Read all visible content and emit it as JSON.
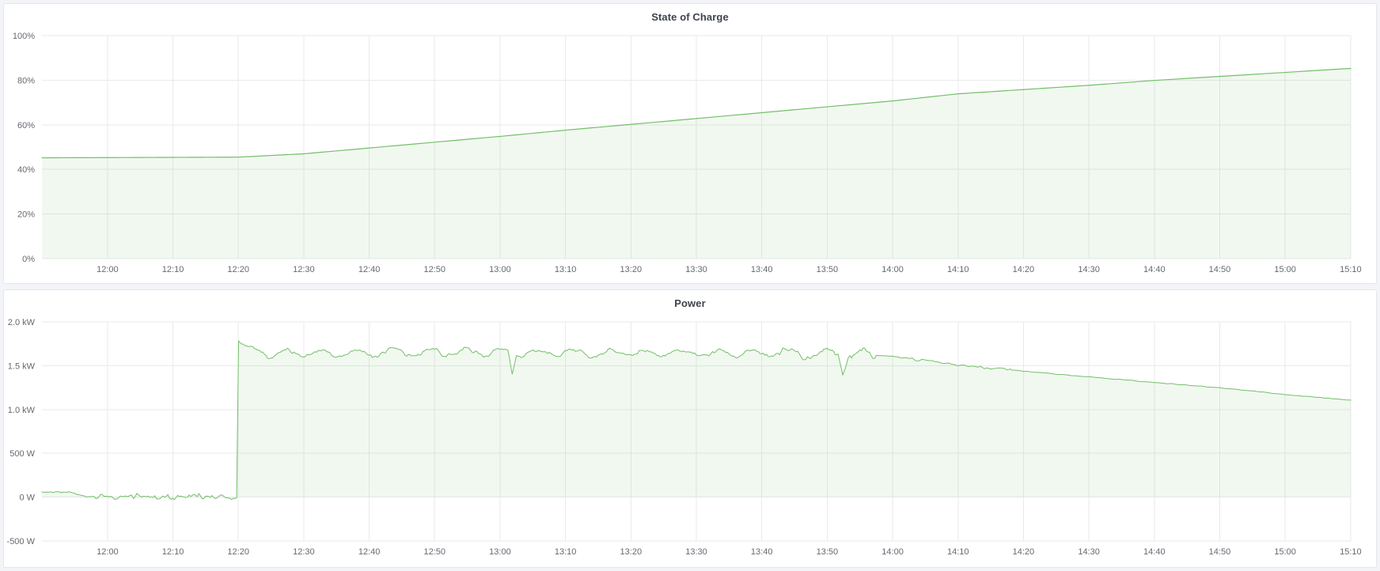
{
  "theme": {
    "page_bg": "#f3f4f7",
    "panel_bg": "#ffffff",
    "panel_border": "#e4e6ea",
    "grid_color": "#e9eaec",
    "tick_label_color": "#64696f",
    "title_color": "#3f444c",
    "series_green": "#73bf69",
    "series_fill": "rgba(115,191,105,0.10)"
  },
  "chart_data": [
    {
      "type": "area",
      "title": "State of Charge",
      "xlabel": "",
      "ylabel": "",
      "unit": "%",
      "x_range_hours": [
        11.833,
        15.167
      ],
      "ylim": [
        0,
        100
      ],
      "grid": true,
      "legend": "none",
      "x_ticks": [
        [
          12.0,
          "12:00"
        ],
        [
          12.1667,
          "12:10"
        ],
        [
          12.3333,
          "12:20"
        ],
        [
          12.5,
          "12:30"
        ],
        [
          12.6667,
          "12:40"
        ],
        [
          12.8333,
          "12:50"
        ],
        [
          13.0,
          "13:00"
        ],
        [
          13.1667,
          "13:10"
        ],
        [
          13.3333,
          "13:20"
        ],
        [
          13.5,
          "13:30"
        ],
        [
          13.6667,
          "13:40"
        ],
        [
          13.8333,
          "13:50"
        ],
        [
          14.0,
          "14:00"
        ],
        [
          14.1667,
          "14:10"
        ],
        [
          14.3333,
          "14:20"
        ],
        [
          14.5,
          "14:30"
        ],
        [
          14.6667,
          "14:40"
        ],
        [
          14.8333,
          "14:50"
        ],
        [
          15.0,
          "15:00"
        ],
        [
          15.1667,
          "15:10"
        ]
      ],
      "y_ticks": [
        [
          100,
          "100%"
        ],
        [
          80,
          "80%"
        ],
        [
          60,
          "60%"
        ],
        [
          40,
          "40%"
        ],
        [
          20,
          "20%"
        ],
        [
          0,
          "0%"
        ]
      ],
      "series": [
        {
          "name": "State of Charge",
          "color": "#73bf69",
          "fill": "rgba(115,191,105,0.10)",
          "line_width": 1.2,
          "fill_to": 0,
          "sample_step_s": 60,
          "points": [
            [
              11.833,
              45.2
            ],
            [
              12.333,
              45.5
            ],
            [
              12.5,
              47.0
            ],
            [
              12.667,
              49.6
            ],
            [
              13.0,
              54.8
            ],
            [
              13.167,
              57.6
            ],
            [
              13.5,
              62.8
            ],
            [
              14.0,
              70.7
            ],
            [
              14.167,
              73.9
            ],
            [
              14.5,
              77.7
            ],
            [
              14.667,
              79.9
            ],
            [
              15.167,
              85.3
            ]
          ],
          "noise_bands": []
        }
      ]
    },
    {
      "type": "area",
      "title": "Power",
      "xlabel": "",
      "ylabel": "",
      "unit": "W",
      "x_range_hours": [
        11.833,
        15.167
      ],
      "ylim": [
        -500,
        2000
      ],
      "grid": true,
      "legend": "none",
      "x_ticks": [
        [
          12.0,
          "12:00"
        ],
        [
          12.1667,
          "12:10"
        ],
        [
          12.3333,
          "12:20"
        ],
        [
          12.5,
          "12:30"
        ],
        [
          12.6667,
          "12:40"
        ],
        [
          12.8333,
          "12:50"
        ],
        [
          13.0,
          "13:00"
        ],
        [
          13.1667,
          "13:10"
        ],
        [
          13.3333,
          "13:20"
        ],
        [
          13.5,
          "13:30"
        ],
        [
          13.6667,
          "13:40"
        ],
        [
          13.8333,
          "13:50"
        ],
        [
          14.0,
          "14:00"
        ],
        [
          14.1667,
          "14:10"
        ],
        [
          14.3333,
          "14:20"
        ],
        [
          14.5,
          "14:30"
        ],
        [
          14.6667,
          "14:40"
        ],
        [
          14.8333,
          "14:50"
        ],
        [
          15.0,
          "15:00"
        ],
        [
          15.1667,
          "15:10"
        ]
      ],
      "y_ticks": [
        [
          2000,
          "2.0 kW"
        ],
        [
          1500,
          "1.5 kW"
        ],
        [
          1000,
          "1.0 kW"
        ],
        [
          500,
          "500 W"
        ],
        [
          0,
          "0 W"
        ],
        [
          -500,
          "-500 W"
        ]
      ],
      "series": [
        {
          "name": "Power",
          "color": "#73bf69",
          "fill": "rgba(115,191,105,0.10)",
          "line_width": 1,
          "fill_to": 0,
          "sample_step_s": 15,
          "points": [
            [
              11.833,
              55
            ],
            [
              11.9,
              58
            ],
            [
              11.933,
              22
            ],
            [
              11.95,
              10
            ],
            [
              12.329,
              0
            ],
            [
              12.334,
              1782
            ],
            [
              12.35,
              1705
            ],
            [
              12.38,
              1655
            ],
            [
              12.42,
              1648
            ],
            [
              13.0,
              1652
            ],
            [
              13.02,
              1656
            ],
            [
              13.031,
              1408
            ],
            [
              13.042,
              1652
            ],
            [
              13.3,
              1642
            ],
            [
              13.6,
              1648
            ],
            [
              13.82,
              1638
            ],
            [
              13.861,
              1632
            ],
            [
              13.873,
              1438
            ],
            [
              13.885,
              1602
            ],
            [
              13.91,
              1632
            ],
            [
              13.955,
              1618
            ],
            [
              14.0,
              1608
            ],
            [
              14.05,
              1576
            ],
            [
              14.167,
              1505
            ],
            [
              14.2,
              1492
            ],
            [
              14.5,
              1372
            ],
            [
              14.867,
              1235
            ],
            [
              15.0,
              1170
            ],
            [
              15.167,
              1107
            ]
          ],
          "noise_bands": [
            {
              "from": 11.833,
              "to": 11.935,
              "type": "noise",
              "amp": 8,
              "step_s": 20,
              "seed": 3
            },
            {
              "from": 11.935,
              "to": 12.329,
              "type": "noise",
              "amp": 30,
              "step_s": 24,
              "seed": 5
            },
            {
              "from": 11.935,
              "to": 12.329,
              "type": "noise",
              "amp": 14,
              "step_s": 9,
              "seed": 11
            },
            {
              "from": 12.345,
              "to": 13.955,
              "type": "sin",
              "amp": 42,
              "period_s": 330,
              "phase": 0.3
            },
            {
              "from": 12.345,
              "to": 13.955,
              "type": "noise",
              "amp": 26,
              "step_s": 36,
              "seed": 17
            },
            {
              "from": 12.345,
              "to": 13.955,
              "type": "noise",
              "amp": 13,
              "step_s": 11,
              "seed": 23
            },
            {
              "from": 13.7,
              "to": 13.955,
              "type": "noise",
              "amp": 26,
              "step_s": 18,
              "seed": 29
            },
            {
              "from": 14.02,
              "to": 14.3,
              "type": "noise",
              "amp": 13,
              "step_s": 30,
              "seed": 31
            },
            {
              "from": 14.3,
              "to": 15.167,
              "type": "noise",
              "amp": 4,
              "step_s": 40,
              "seed": 37
            }
          ]
        }
      ]
    }
  ]
}
